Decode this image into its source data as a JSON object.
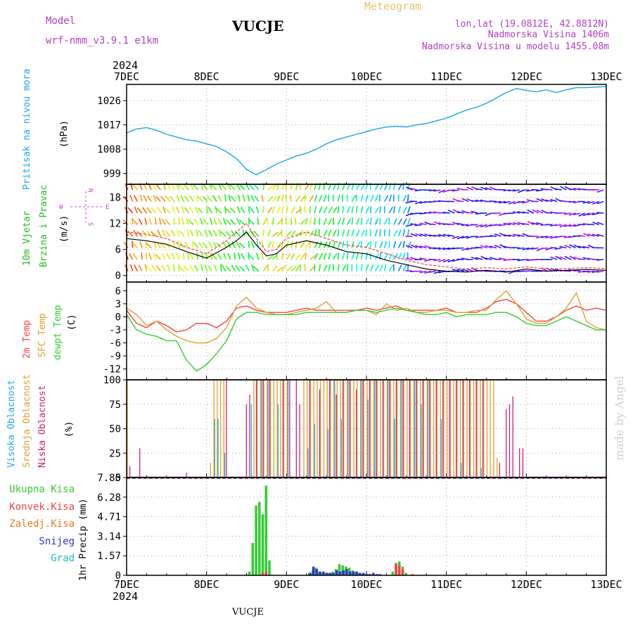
{
  "header": {
    "model_label": "Model",
    "model_name": "wrf-nmm_v3.9.1  e1km",
    "station": "VUCJE",
    "title": "Meteogram",
    "lonlat": "lon,lat (19.0812E, 42.8812N)",
    "elevation": "Nadmorska Visina 1406m",
    "model_elevation": "Nadmorska Visina u modelu 1455.08m",
    "year_top": "2024",
    "year_bottom": "2024",
    "footer_station": "VUCJE",
    "watermark": "made by Angel"
  },
  "colors": {
    "pressure": "#1aa5e6",
    "t2m": "#ee4444",
    "tsfc": "#e0a030",
    "dewpt": "#33cc33",
    "high_cloud": "#22aadd",
    "mid_cloud": "#e0a030",
    "low_cloud": "#cc2277",
    "total_precip": "#33cc33",
    "conv_precip": "#ee4444",
    "frz_precip": "#f07820",
    "snow": "#3333cc",
    "grad": "#22bbbb",
    "wind_labels": "#22bb22",
    "compass": "#cc44cc"
  },
  "labels": {
    "pressure_title": "Pritisak na nivou mora",
    "pressure_unit": "(hPa)",
    "wind_title_1": "10m Vjetar",
    "wind_title_2": "Brzina i Pravac",
    "wind_unit": "(m/s)",
    "compass_n": "N",
    "compass_w": "W",
    "compass_e": "E",
    "compass_s": "S",
    "temp_2m": "2m Temp",
    "temp_sfc": "SFC Temp",
    "temp_dewpt": "dewpt Temp",
    "temp_unit": "(C)",
    "cloud_high": "Visoka Oblacnost",
    "cloud_mid": "Srednja Oblacnost",
    "cloud_low": "Niska Oblacnost",
    "cloud_unit": "(%)",
    "precip_total": "Ukupna Kisa",
    "precip_conv": "Konvek.Kisa",
    "precip_frz": "Zaledj.Kisa",
    "precip_snow": "Snijeg",
    "precip_grad": "Grad",
    "precip_axis": "1hr Precip (mm)"
  },
  "chart_data": [
    {
      "type": "line",
      "name": "pressure",
      "x_ticks": [
        "7DEC",
        "8DEC",
        "9DEC",
        "10DEC",
        "11DEC",
        "12DEC",
        "13DEC"
      ],
      "ylim": [
        995,
        1032
      ],
      "y_ticks": [
        "999",
        "1008",
        "1017",
        "1026"
      ],
      "x": [
        0,
        3,
        6,
        9,
        12,
        15,
        18,
        21,
        24,
        27,
        30,
        33,
        36,
        39,
        42,
        45,
        48,
        51,
        54,
        57,
        60,
        63,
        66,
        69,
        72,
        75,
        78,
        81,
        84,
        87,
        90,
        93,
        96,
        99,
        102,
        105,
        108,
        111,
        114,
        117,
        120,
        123,
        126,
        129,
        132,
        135,
        138,
        141,
        144
      ],
      "series": [
        {
          "values": [
            1014,
            1015.5,
            1016,
            1015,
            1013.5,
            1012.5,
            1011.5,
            1011,
            1010,
            1009,
            1007,
            1004.5,
            1000.5,
            998.5,
            1000.5,
            1002.5,
            1004,
            1005.5,
            1006.5,
            1008,
            1010,
            1011.5,
            1012.5,
            1013.5,
            1014.5,
            1015.5,
            1016.2,
            1016.5,
            1016.2,
            1017,
            1017.5,
            1018.5,
            1019.5,
            1021,
            1022.5,
            1023.5,
            1025,
            1027,
            1029,
            1030.5,
            1029.8,
            1029.2,
            1030,
            1029,
            1030,
            1030.8,
            1030.8,
            1031,
            1031.2
          ]
        }
      ]
    },
    {
      "type": "line",
      "name": "10m wind",
      "ylim": [
        -1.5,
        21
      ],
      "y_ticks": [
        "0",
        "6",
        "12",
        "18"
      ],
      "grid": true,
      "x": [
        0,
        6,
        12,
        18,
        24,
        30,
        33,
        36,
        39,
        42,
        45,
        48,
        54,
        60,
        66,
        72,
        78,
        84,
        90,
        96,
        102,
        108,
        114,
        120,
        126,
        132,
        138,
        144
      ],
      "series": [
        {
          "values": [
            8.5,
            8,
            7.2,
            5.5,
            4,
            6.5,
            8,
            10,
            7,
            4.5,
            5,
            7,
            8,
            7,
            5.5,
            5,
            3.5,
            2.5,
            1.5,
            1,
            0.8,
            1.2,
            0.8,
            1.5,
            1,
            1.2,
            1.4,
            1.2
          ]
        },
        {
          "values": [
            10,
            9.5,
            8.5,
            6.5,
            5,
            8,
            10,
            12,
            8.5,
            5.5,
            6,
            8.5,
            10,
            8.5,
            7,
            6.5,
            5,
            3.5,
            2.5,
            2,
            1.5,
            1.8,
            1.5,
            2,
            1.5,
            1.6,
            1.8,
            1.6
          ]
        }
      ]
    },
    {
      "type": "line",
      "name": "temperature",
      "ylim": [
        -14.5,
        8
      ],
      "y_ticks": [
        "-12",
        "-9",
        "-6",
        "-3",
        "0",
        "3",
        "6"
      ],
      "x": [
        0,
        3,
        6,
        9,
        12,
        15,
        18,
        21,
        24,
        27,
        30,
        33,
        36,
        39,
        42,
        45,
        48,
        51,
        54,
        57,
        60,
        63,
        66,
        69,
        72,
        75,
        78,
        81,
        84,
        87,
        90,
        93,
        96,
        99,
        102,
        105,
        108,
        111,
        114,
        117,
        120,
        123,
        126,
        129,
        132,
        135,
        138,
        141,
        144
      ],
      "series": [
        {
          "name": "2m Temp",
          "values": [
            1.5,
            -1.5,
            -2.5,
            -1,
            -2,
            -3.5,
            -3,
            -1.5,
            -1.5,
            -2.5,
            -1,
            2,
            2.5,
            1.5,
            1,
            1,
            1,
            1.5,
            2,
            1.5,
            1.5,
            1.5,
            1.5,
            1.5,
            2,
            1.5,
            2,
            2.5,
            1.5,
            1.5,
            1.5,
            1.5,
            2,
            1,
            1,
            1,
            2,
            3.5,
            4,
            3,
            1,
            -1,
            -1,
            0,
            1.5,
            2.5,
            1.5,
            2,
            1.5
          ]
        },
        {
          "name": "SFC Temp",
          "values": [
            2,
            0.5,
            -2,
            -1,
            -3,
            -4.5,
            -5.5,
            -6,
            -6,
            -5,
            -2.5,
            2.5,
            4.5,
            2,
            1,
            0.5,
            0.5,
            1,
            1.5,
            2,
            3.5,
            1,
            1,
            1.5,
            1.5,
            0.5,
            3,
            1.5,
            2,
            1,
            1,
            1.5,
            1.5,
            1,
            1,
            1.5,
            1.5,
            4,
            6,
            3,
            -0.5,
            -1.5,
            -1.5,
            0,
            2,
            5.5,
            -1,
            -2.5,
            -3
          ]
        },
        {
          "name": "dewpt Temp",
          "values": [
            0.5,
            -3,
            -4,
            -4.5,
            -5.5,
            -5.5,
            -10,
            -12.5,
            -11,
            -8.5,
            -5.5,
            -0.5,
            1,
            1,
            0.5,
            0.5,
            0.5,
            0.5,
            1,
            1,
            1,
            1,
            1,
            1.5,
            1.5,
            1,
            1.5,
            2,
            1.5,
            1,
            0.5,
            0.5,
            1,
            0,
            0.5,
            0.5,
            0.5,
            1,
            1,
            0,
            -1.5,
            -2,
            -2,
            -1,
            0,
            -1,
            -2,
            -3,
            -3
          ]
        }
      ]
    },
    {
      "type": "bar",
      "name": "cloud cover",
      "ylim": [
        0,
        100
      ],
      "y_ticks": [
        "0",
        "25",
        "50",
        "75",
        "100"
      ],
      "series": [
        {
          "name": "Visoka Oblacnost",
          "x": [
            26,
            27,
            29,
            37,
            40,
            42,
            45,
            48,
            54,
            56,
            60,
            62,
            64,
            66,
            70,
            72,
            74,
            78,
            80,
            82,
            86,
            88,
            90,
            94,
            100,
            106
          ],
          "values": [
            60,
            60,
            25,
            75,
            100,
            100,
            75,
            100,
            30,
            55,
            50,
            100,
            60,
            100,
            100,
            80,
            100,
            100,
            60,
            100,
            100,
            75,
            100,
            60,
            15,
            10
          ]
        },
        {
          "name": "Srednja Oblacnost",
          "x": [
            0,
            25,
            26,
            27,
            28,
            29,
            38,
            39,
            40,
            41,
            42,
            43,
            44,
            45,
            46,
            47,
            48,
            53,
            54,
            55,
            56,
            57,
            58,
            59,
            60,
            61,
            62,
            63,
            64,
            65,
            66,
            67,
            68,
            69,
            70,
            71,
            72,
            73,
            74,
            75,
            76,
            77,
            78,
            79,
            80,
            81,
            82,
            83,
            84,
            85,
            86,
            87,
            88,
            89,
            90,
            91,
            92,
            93,
            94,
            95,
            96,
            97,
            98,
            99,
            100,
            101,
            102,
            103,
            104,
            105,
            106,
            107,
            108,
            109,
            110,
            111
          ],
          "values": [
            100,
            15,
            100,
            100,
            100,
            100,
            100,
            100,
            100,
            100,
            100,
            100,
            100,
            100,
            100,
            100,
            100,
            100,
            100,
            100,
            100,
            100,
            100,
            100,
            100,
            100,
            100,
            100,
            100,
            100,
            100,
            100,
            100,
            100,
            100,
            100,
            100,
            100,
            100,
            100,
            100,
            100,
            100,
            100,
            100,
            100,
            100,
            100,
            100,
            100,
            100,
            100,
            100,
            100,
            100,
            100,
            100,
            100,
            100,
            100,
            100,
            100,
            100,
            100,
            100,
            100,
            100,
            100,
            100,
            100,
            100,
            100,
            100,
            100,
            100,
            20
          ]
        },
        {
          "name": "Niska Oblacnost",
          "x": [
            1,
            4,
            18,
            30,
            36,
            37,
            39,
            41,
            43,
            47,
            49,
            51,
            52,
            55,
            58,
            61,
            63,
            65,
            67,
            69,
            71,
            73,
            75,
            77,
            79,
            81,
            83,
            85,
            87,
            89,
            91,
            93,
            95,
            97,
            99,
            101,
            103,
            105,
            107,
            112,
            114,
            115,
            116,
            118,
            119
          ],
          "values": [
            12,
            30,
            5,
            100,
            75,
            85,
            100,
            100,
            100,
            100,
            100,
            100,
            75,
            100,
            90,
            100,
            85,
            100,
            100,
            90,
            100,
            100,
            100,
            100,
            100,
            100,
            100,
            100,
            100,
            100,
            100,
            100,
            100,
            100,
            100,
            100,
            100,
            100,
            100,
            15,
            70,
            75,
            83,
            30,
            30
          ]
        }
      ]
    },
    {
      "type": "bar",
      "name": "1hr precipitation",
      "ylim": [
        0,
        7.85
      ],
      "y_ticks": [
        "0",
        "1.57",
        "3.14",
        "4.71",
        "6.28",
        "7.85"
      ],
      "series": [
        {
          "name": "Ukupna Kisa",
          "x": [
            37,
            38,
            39,
            40,
            41,
            42,
            43,
            55,
            56,
            57,
            58,
            59,
            60,
            61,
            62,
            63,
            64,
            65,
            66,
            67,
            68,
            69,
            70,
            71,
            72,
            73,
            80,
            81,
            82,
            83,
            84
          ],
          "values": [
            0.3,
            2.6,
            5.6,
            5.9,
            4.9,
            7.2,
            1.2,
            0.2,
            0.4,
            0.6,
            0.3,
            0.2,
            0.2,
            0.2,
            0.3,
            0.5,
            0.9,
            0.8,
            0.7,
            0.6,
            0.4,
            0.3,
            0.2,
            0.1,
            0.1,
            0.1,
            0.3,
            1,
            1.1,
            0.7,
            0.2
          ]
        },
        {
          "name": "Konvek.Kisa",
          "x": [
            41,
            42,
            81,
            82,
            83,
            86
          ],
          "values": [
            0.2,
            0.3,
            0.9,
            0.8,
            0.5,
            0.1
          ]
        },
        {
          "name": "Snijeg",
          "x": [
            55,
            56,
            57,
            58,
            59,
            60,
            61,
            62,
            63,
            64,
            65,
            66,
            67,
            68,
            69,
            70,
            71,
            72,
            73,
            74,
            75,
            76
          ],
          "values": [
            0.2,
            0.7,
            0.5,
            0.3,
            0.3,
            0.2,
            0.2,
            0.2,
            0.4,
            0.3,
            0.4,
            0.5,
            0.3,
            0.3,
            0.3,
            0.2,
            0.2,
            0.1,
            0.1,
            0.2,
            0.1,
            0.1
          ]
        }
      ]
    }
  ]
}
